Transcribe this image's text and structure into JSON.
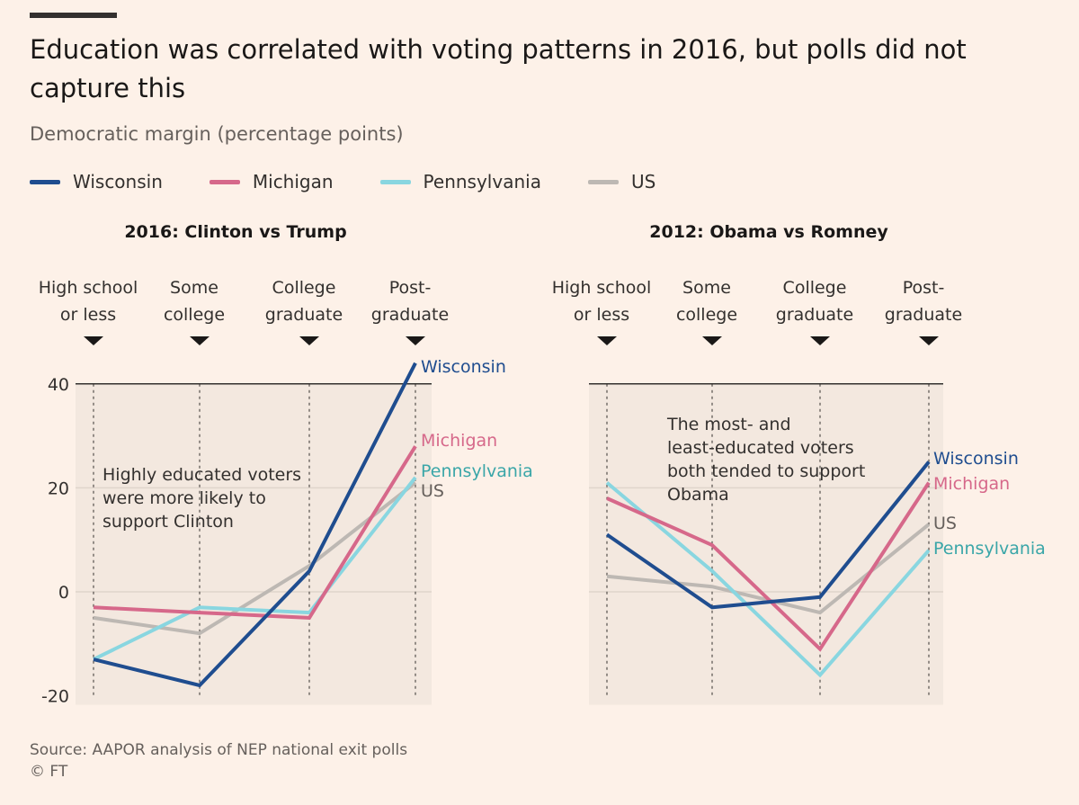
{
  "header": {
    "title": "Education was correlated with voting patterns in 2016, but polls did not capture this",
    "subtitle": "Democratic margin (percentage points)"
  },
  "legend": [
    {
      "name": "Wisconsin",
      "color": "#1f4d8f"
    },
    {
      "name": "Michigan",
      "color": "#d6688a"
    },
    {
      "name": "Pennsylvania",
      "color": "#89d6e0"
    },
    {
      "name": "US",
      "color": "#bdb8b3"
    }
  ],
  "colors": {
    "Wisconsin": "#1f4d8f",
    "Michigan": "#d6688a",
    "Pennsylvania": "#89d6e0",
    "US": "#bdb8b3",
    "label_Wisconsin": "#1f4d8f",
    "label_Michigan": "#d6688a",
    "label_Pennsylvania": "#3aa6a8",
    "label_US": "#66605c"
  },
  "chart_data": [
    {
      "type": "line",
      "title": "2016: Clinton vs Trump",
      "categories": [
        [
          "High school",
          "or less"
        ],
        [
          "Some",
          "college"
        ],
        [
          "College",
          "graduate"
        ],
        [
          "Post-",
          "graduate"
        ]
      ],
      "ylim": [
        -20,
        40
      ],
      "yticks": [
        "40",
        "20",
        "0",
        "-20"
      ],
      "grid": true,
      "annotation": [
        "Highly educated voters",
        "were more likely to",
        "support Clinton"
      ],
      "series": [
        {
          "name": "US",
          "values": [
            -5,
            -8,
            5,
            21
          ]
        },
        {
          "name": "Pennsylvania",
          "values": [
            -13,
            -3,
            -4,
            22
          ]
        },
        {
          "name": "Michigan",
          "values": [
            -3,
            -4,
            -5,
            28
          ]
        },
        {
          "name": "Wisconsin",
          "values": [
            -13,
            -18,
            4,
            44
          ]
        }
      ]
    },
    {
      "type": "line",
      "title": "2012: Obama vs Romney",
      "categories": [
        [
          "High school",
          "or less"
        ],
        [
          "Some",
          "college"
        ],
        [
          "College",
          "graduate"
        ],
        [
          "Post-",
          "graduate"
        ]
      ],
      "ylim": [
        -20,
        40
      ],
      "grid": true,
      "annotation": [
        "The most- and",
        "least-educated voters",
        "both tended to support",
        "Obama"
      ],
      "series": [
        {
          "name": "US",
          "values": [
            3,
            1,
            -4,
            13
          ]
        },
        {
          "name": "Pennsylvania",
          "values": [
            21,
            4,
            -16,
            8
          ]
        },
        {
          "name": "Michigan",
          "values": [
            18,
            9,
            -11,
            21
          ]
        },
        {
          "name": "Wisconsin",
          "values": [
            11,
            -3,
            -1,
            25
          ]
        }
      ]
    }
  ],
  "footer": {
    "source": "Source: AAPOR analysis of NEP national exit polls",
    "copyright": "© FT"
  }
}
